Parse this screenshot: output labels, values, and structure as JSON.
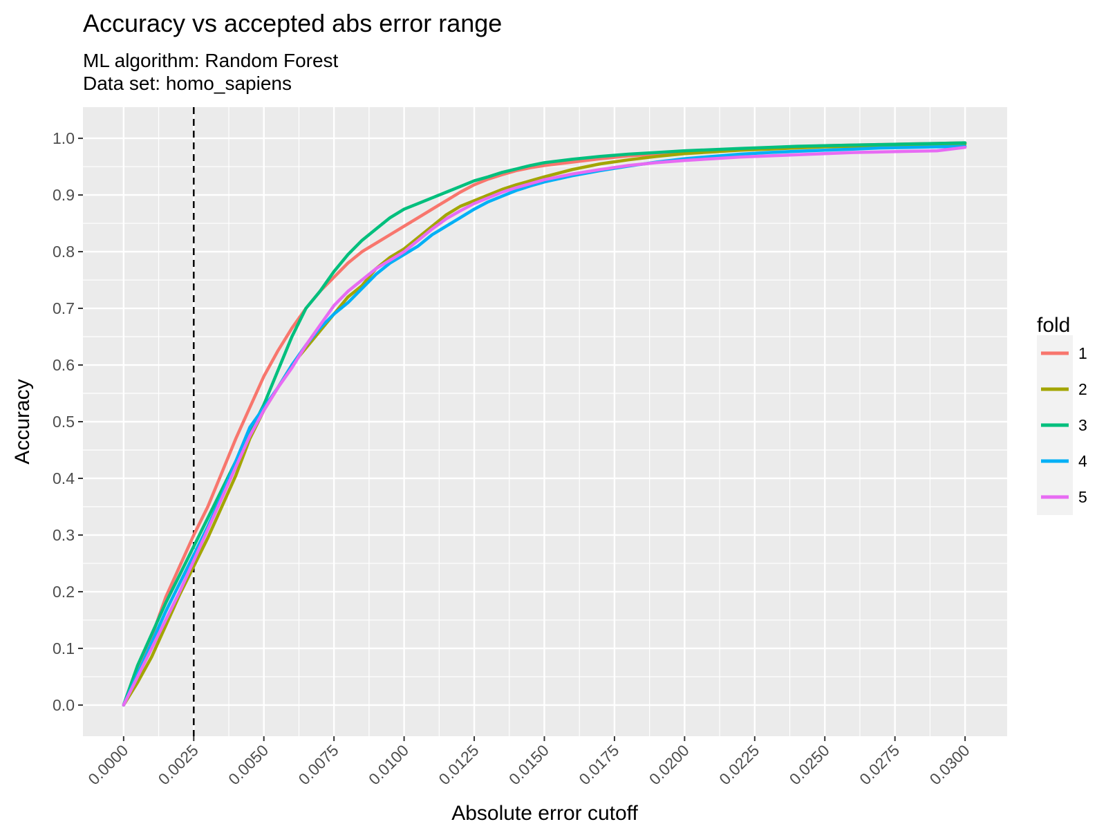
{
  "chart_data": {
    "type": "line",
    "title": "Accuracy vs accepted abs error range",
    "subtitle_lines": [
      "ML algorithm: Random Forest",
      "Data set: homo_sapiens"
    ],
    "xlabel": "Absolute error cutoff",
    "ylabel": "Accuracy",
    "xlim": [
      -0.00145,
      0.0315
    ],
    "ylim": [
      -0.055,
      1.055
    ],
    "x_ticks": [
      0,
      0.0025,
      0.005,
      0.0075,
      0.01,
      0.0125,
      0.015,
      0.0175,
      0.02,
      0.0225,
      0.025,
      0.0275,
      0.03
    ],
    "x_tick_labels": [
      "0.0000",
      "0.0025",
      "0.0050",
      "0.0075",
      "0.0100",
      "0.0125",
      "0.0150",
      "0.0175",
      "0.0200",
      "0.0225",
      "0.0250",
      "0.0275",
      "0.0300"
    ],
    "y_ticks": [
      0,
      0.1,
      0.2,
      0.3,
      0.4,
      0.5,
      0.6,
      0.7,
      0.8,
      0.9,
      1.0
    ],
    "y_tick_labels": [
      "0.0",
      "0.1",
      "0.2",
      "0.3",
      "0.4",
      "0.5",
      "0.6",
      "0.7",
      "0.8",
      "0.9",
      "1.0"
    ],
    "grid": true,
    "reference_line": {
      "x": 0.0025,
      "style": "dashed",
      "color": "#000000"
    },
    "legend": {
      "title": "fold",
      "position": "right"
    },
    "series": [
      {
        "name": "1",
        "color": "#F8766D",
        "x": [
          0,
          0.0005,
          0.001,
          0.0015,
          0.002,
          0.0025,
          0.003,
          0.0035,
          0.004,
          0.0045,
          0.005,
          0.0055,
          0.006,
          0.0065,
          0.007,
          0.0075,
          0.008,
          0.0085,
          0.009,
          0.0095,
          0.01,
          0.0105,
          0.011,
          0.0115,
          0.012,
          0.0125,
          0.013,
          0.0135,
          0.014,
          0.0145,
          0.015,
          0.016,
          0.017,
          0.018,
          0.019,
          0.02,
          0.021,
          0.022,
          0.023,
          0.024,
          0.025,
          0.026,
          0.027,
          0.028,
          0.029,
          0.03
        ],
        "y": [
          0,
          0.06,
          0.12,
          0.19,
          0.245,
          0.3,
          0.35,
          0.41,
          0.47,
          0.525,
          0.58,
          0.625,
          0.665,
          0.7,
          0.73,
          0.755,
          0.78,
          0.8,
          0.815,
          0.83,
          0.845,
          0.86,
          0.875,
          0.89,
          0.905,
          0.918,
          0.928,
          0.936,
          0.943,
          0.948,
          0.952,
          0.958,
          0.964,
          0.969,
          0.972,
          0.976,
          0.979,
          0.981,
          0.983,
          0.985,
          0.987,
          0.988,
          0.989,
          0.99,
          0.991,
          0.992
        ]
      },
      {
        "name": "2",
        "color": "#A3A500",
        "x": [
          0,
          0.0005,
          0.001,
          0.0015,
          0.002,
          0.0025,
          0.003,
          0.0035,
          0.004,
          0.0045,
          0.005,
          0.0055,
          0.006,
          0.0065,
          0.007,
          0.0075,
          0.008,
          0.0085,
          0.009,
          0.0095,
          0.01,
          0.0105,
          0.011,
          0.0115,
          0.012,
          0.0125,
          0.013,
          0.0135,
          0.014,
          0.0145,
          0.015,
          0.016,
          0.017,
          0.018,
          0.019,
          0.02,
          0.021,
          0.022,
          0.023,
          0.024,
          0.025,
          0.026,
          0.027,
          0.028,
          0.029,
          0.03
        ],
        "y": [
          0,
          0.04,
          0.085,
          0.14,
          0.195,
          0.245,
          0.295,
          0.35,
          0.405,
          0.47,
          0.52,
          0.56,
          0.6,
          0.63,
          0.66,
          0.69,
          0.72,
          0.74,
          0.77,
          0.79,
          0.805,
          0.825,
          0.845,
          0.865,
          0.88,
          0.89,
          0.9,
          0.91,
          0.918,
          0.925,
          0.932,
          0.945,
          0.955,
          0.962,
          0.968,
          0.973,
          0.976,
          0.979,
          0.981,
          0.983,
          0.985,
          0.986,
          0.987,
          0.988,
          0.989,
          0.99
        ]
      },
      {
        "name": "3",
        "color": "#00BF7D",
        "x": [
          0,
          0.0005,
          0.001,
          0.0015,
          0.002,
          0.0025,
          0.003,
          0.0035,
          0.004,
          0.0045,
          0.005,
          0.0055,
          0.006,
          0.0065,
          0.007,
          0.0075,
          0.008,
          0.0085,
          0.009,
          0.0095,
          0.01,
          0.0105,
          0.011,
          0.0115,
          0.012,
          0.0125,
          0.013,
          0.0135,
          0.014,
          0.0145,
          0.015,
          0.016,
          0.017,
          0.018,
          0.019,
          0.02,
          0.021,
          0.022,
          0.023,
          0.024,
          0.025,
          0.026,
          0.027,
          0.028,
          0.029,
          0.03
        ],
        "y": [
          0,
          0.07,
          0.125,
          0.18,
          0.23,
          0.28,
          0.33,
          0.38,
          0.43,
          0.48,
          0.53,
          0.59,
          0.65,
          0.7,
          0.73,
          0.765,
          0.795,
          0.82,
          0.84,
          0.86,
          0.875,
          0.885,
          0.895,
          0.905,
          0.915,
          0.925,
          0.932,
          0.94,
          0.946,
          0.952,
          0.957,
          0.963,
          0.968,
          0.972,
          0.975,
          0.978,
          0.98,
          0.982,
          0.984,
          0.986,
          0.987,
          0.988,
          0.989,
          0.99,
          0.991,
          0.992
        ]
      },
      {
        "name": "4",
        "color": "#00B0F6",
        "x": [
          0,
          0.0005,
          0.001,
          0.0015,
          0.002,
          0.0025,
          0.003,
          0.0035,
          0.004,
          0.0045,
          0.005,
          0.0055,
          0.006,
          0.0065,
          0.007,
          0.0075,
          0.008,
          0.0085,
          0.009,
          0.0095,
          0.01,
          0.0105,
          0.011,
          0.0115,
          0.012,
          0.0125,
          0.013,
          0.0135,
          0.014,
          0.0145,
          0.015,
          0.016,
          0.017,
          0.018,
          0.019,
          0.02,
          0.021,
          0.022,
          0.023,
          0.024,
          0.025,
          0.026,
          0.027,
          0.028,
          0.029,
          0.03
        ],
        "y": [
          0,
          0.055,
          0.11,
          0.165,
          0.215,
          0.265,
          0.315,
          0.37,
          0.43,
          0.49,
          0.525,
          0.56,
          0.6,
          0.635,
          0.665,
          0.69,
          0.71,
          0.735,
          0.76,
          0.78,
          0.795,
          0.81,
          0.83,
          0.845,
          0.86,
          0.875,
          0.888,
          0.898,
          0.908,
          0.916,
          0.923,
          0.934,
          0.943,
          0.951,
          0.958,
          0.964,
          0.968,
          0.972,
          0.975,
          0.977,
          0.979,
          0.981,
          0.983,
          0.984,
          0.985,
          0.986
        ]
      },
      {
        "name": "5",
        "color": "#E76BF3",
        "x": [
          0,
          0.0005,
          0.001,
          0.0015,
          0.002,
          0.0025,
          0.003,
          0.0035,
          0.004,
          0.0045,
          0.005,
          0.0055,
          0.006,
          0.0065,
          0.007,
          0.0075,
          0.008,
          0.0085,
          0.009,
          0.0095,
          0.01,
          0.0105,
          0.011,
          0.0115,
          0.012,
          0.0125,
          0.013,
          0.0135,
          0.014,
          0.0145,
          0.015,
          0.016,
          0.017,
          0.018,
          0.019,
          0.02,
          0.021,
          0.022,
          0.023,
          0.024,
          0.025,
          0.026,
          0.027,
          0.028,
          0.029,
          0.03
        ],
        "y": [
          0,
          0.05,
          0.1,
          0.15,
          0.2,
          0.255,
          0.31,
          0.365,
          0.42,
          0.475,
          0.52,
          0.56,
          0.595,
          0.635,
          0.67,
          0.705,
          0.73,
          0.75,
          0.77,
          0.785,
          0.8,
          0.82,
          0.84,
          0.858,
          0.872,
          0.885,
          0.895,
          0.905,
          0.913,
          0.92,
          0.927,
          0.937,
          0.945,
          0.952,
          0.957,
          0.961,
          0.964,
          0.967,
          0.969,
          0.971,
          0.973,
          0.975,
          0.976,
          0.977,
          0.978,
          0.984
        ]
      }
    ]
  }
}
